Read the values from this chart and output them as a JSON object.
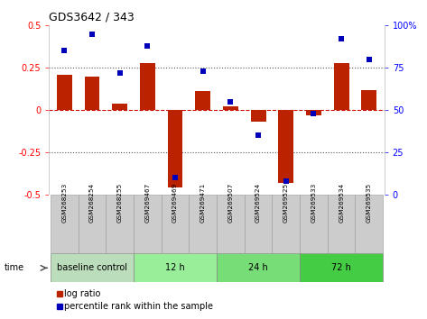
{
  "title": "GDS3642 / 343",
  "samples": [
    "GSM268253",
    "GSM268254",
    "GSM268255",
    "GSM269467",
    "GSM269469",
    "GSM269471",
    "GSM269507",
    "GSM269524",
    "GSM269525",
    "GSM269533",
    "GSM269534",
    "GSM269535"
  ],
  "log_ratio": [
    0.21,
    0.2,
    0.04,
    0.28,
    -0.46,
    0.11,
    0.02,
    -0.07,
    -0.43,
    -0.03,
    0.28,
    0.12
  ],
  "percentile_rank": [
    85,
    95,
    72,
    88,
    10,
    73,
    55,
    35,
    8,
    48,
    92,
    80
  ],
  "groups": [
    {
      "label": "baseline control",
      "start": 0,
      "end": 3
    },
    {
      "label": "12 h",
      "start": 3,
      "end": 6
    },
    {
      "label": "24 h",
      "start": 6,
      "end": 9
    },
    {
      "label": "72 h",
      "start": 9,
      "end": 12
    }
  ],
  "group_colors": [
    "#bbddbb",
    "#99ee99",
    "#77dd77",
    "#44cc44"
  ],
  "bar_color": "#bb2200",
  "dot_color": "#0000bb",
  "ylim_left": [
    -0.5,
    0.5
  ],
  "ylim_right": [
    0,
    100
  ],
  "yticks_left": [
    -0.5,
    -0.25,
    0,
    0.25,
    0.5
  ],
  "ytick_labels_left": [
    "-0.5",
    "-0.25",
    "0",
    "0.25",
    "0.5"
  ],
  "yticks_right": [
    0,
    25,
    50,
    75,
    100
  ],
  "ytick_labels_right": [
    "0",
    "25",
    "50",
    "75",
    "100%"
  ],
  "hline_zero_color": "#cc0000",
  "hline_dotted_color": "#555555",
  "legend_log_ratio": "log ratio",
  "legend_percentile": "percentile rank within the sample",
  "time_label": "time",
  "bg_color": "#ffffff",
  "sample_box_color": "#cccccc",
  "sample_box_border": "#999999"
}
